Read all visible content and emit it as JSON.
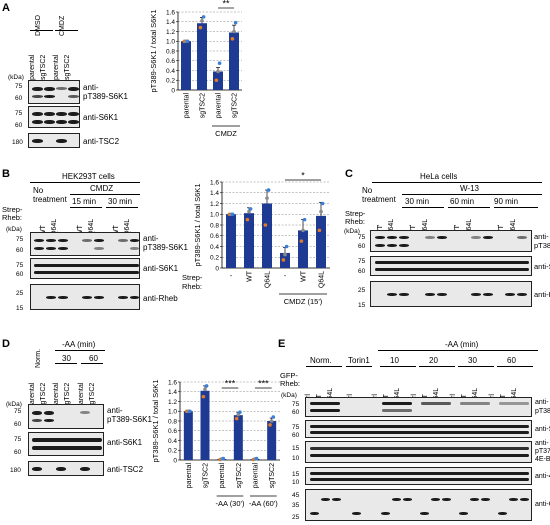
{
  "panels": {
    "A": {
      "letter": "A",
      "treatments": [
        "DMSO",
        "CMDZ"
      ],
      "lanes": [
        "parental",
        "sgTSC2",
        "parental",
        "sgTSC2"
      ],
      "kda": "(kDa)",
      "markers": [
        "75",
        "60",
        "75",
        "60",
        "180"
      ],
      "blots": [
        "anti-\npT389-S6K1",
        "anti-S6K1",
        "anti-TSC2"
      ]
    },
    "B": {
      "letter": "B",
      "cell_line": "HEK293T cells",
      "groups": [
        "No treatment",
        "CMDZ",
        "15 min",
        "30 min"
      ],
      "strep_rheb_label": "Strep-\nRheb:",
      "kda": "(kDa)",
      "lanes": [
        "-",
        "WT",
        "Q64L",
        "-",
        "WT",
        "Q64L",
        "-",
        "WT",
        "Q64L"
      ],
      "markers": [
        "75",
        "60",
        "75",
        "60",
        "25",
        "15"
      ],
      "blots": [
        "anti-\npT389-S6K1",
        "anti-S6K1",
        "anti-Rheb"
      ]
    },
    "C": {
      "letter": "C",
      "cell_line": "HeLa cells",
      "groups": [
        "No treatment",
        "W-13",
        "30 min",
        "60 min",
        "90 min"
      ],
      "strep_rheb_label": "Strep-\nRheb:",
      "kda": "(kDa)",
      "lanes": [
        "-",
        "WT",
        "Q64L",
        "-",
        "WT",
        "Q64L",
        "-",
        "WT",
        "Q64L",
        "-",
        "WT",
        "Q64L"
      ],
      "markers": [
        "75",
        "60",
        "75",
        "60",
        "25",
        "15"
      ],
      "blots": [
        "anti-\npT389-S6K1",
        "anti-S6K1",
        "anti-Rheb"
      ]
    },
    "D": {
      "letter": "D",
      "treatment": "-AA (min)",
      "lanes_header": [
        "Norm.",
        "30",
        "60"
      ],
      "lanes": [
        "parental",
        "sgTSC2",
        "parental",
        "sgTSC2",
        "parental",
        "sgTSC2"
      ],
      "kda": "(kDa)",
      "markers": [
        "75",
        "60",
        "75",
        "60",
        "180"
      ],
      "blots": [
        "anti-\npT389-S6K1",
        "anti-S6K1",
        "anti-TSC2"
      ]
    },
    "E": {
      "letter": "E",
      "treatment": "-AA (min)",
      "groups": [
        "Norm.",
        "Torin1",
        "10",
        "20",
        "30",
        "60"
      ],
      "gfp_rheb_label": "GFP-\nRheb:",
      "kda": "(kDa)",
      "lanes": [
        "Ctrl",
        "WT",
        "Q64L",
        "Ctrl",
        "Ctrl",
        "WT",
        "Q64L",
        "Ctrl",
        "WT",
        "Q64L",
        "Ctrl",
        "WT",
        "Q64L",
        "Ctrl",
        "WT",
        "Q64L"
      ],
      "markers": [
        "75",
        "60",
        "75",
        "60",
        "15",
        "10",
        "15",
        "10",
        "45",
        "35",
        "25"
      ],
      "blots": [
        "anti-\npT389-S6K1",
        "anti-S6K1",
        "anti-\npT37/46-\n4E-BP1",
        "anti-4E-BP1",
        "anti-GFP"
      ]
    }
  },
  "chart_data": [
    {
      "panel": "A",
      "type": "bar",
      "ylabel": "pT389-S6K1 / total S6K1",
      "ylim": [
        0,
        1.6
      ],
      "yticks": [
        "0",
        "0.2",
        "0.4",
        "0.6",
        "0.8",
        "1.0",
        "1.2",
        "1.4",
        "1.6"
      ],
      "categories": [
        "parental",
        "sgTSC2",
        "parental",
        "sgTSC2"
      ],
      "values": [
        1.0,
        1.37,
        0.38,
        1.18
      ],
      "errors": [
        0.0,
        0.12,
        0.08,
        0.15
      ],
      "points": [
        [
          1.0,
          1.0,
          1.0
        ],
        [
          1.28,
          1.42,
          1.5
        ],
        [
          0.2,
          0.38,
          0.55
        ],
        [
          1.05,
          1.2,
          1.38
        ]
      ],
      "group_label": "CMDZ",
      "significance": "**",
      "colors": {
        "bar": "#1f3a93",
        "points": [
          "#e07b27",
          "#8a8a8a",
          "#3b7fd6"
        ]
      }
    },
    {
      "panel": "B",
      "type": "bar",
      "ylabel": "pT389-S6K1 / total S6K1",
      "ylim": [
        0,
        1.6
      ],
      "yticks": [
        "0",
        "0.2",
        "0.4",
        "0.6",
        "0.8",
        "1.0",
        "1.2",
        "1.4",
        "1.6"
      ],
      "x_title": "Strep-\nRheb:",
      "categories": [
        "-",
        "WT",
        "Q64L",
        "-",
        "WT",
        "Q64L"
      ],
      "values": [
        1.0,
        1.02,
        1.2,
        0.28,
        0.7,
        0.97
      ],
      "errors": [
        0.0,
        0.1,
        0.25,
        0.1,
        0.2,
        0.25
      ],
      "points": [
        [
          1.0,
          1.0,
          1.0
        ],
        [
          0.9,
          1.05,
          1.1
        ],
        [
          0.8,
          1.3,
          1.45
        ],
        [
          0.15,
          0.25,
          0.4
        ],
        [
          0.5,
          0.7,
          0.9
        ],
        [
          0.7,
          1.05,
          1.2
        ]
      ],
      "group_label": "CMDZ (15')",
      "significance": "*",
      "colors": {
        "bar": "#1f3a93",
        "points": [
          "#e07b27",
          "#8a8a8a",
          "#3b7fd6"
        ]
      }
    },
    {
      "panel": "D",
      "type": "bar",
      "ylabel": "pT389-S6K1 / total S6K1",
      "ylim": [
        0,
        1.6
      ],
      "yticks": [
        "0",
        "0.2",
        "0.4",
        "0.6",
        "0.8",
        "1.0",
        "1.2",
        "1.4",
        "1.6"
      ],
      "categories": [
        "parental",
        "sgTSC2",
        "parental",
        "sgTSC2",
        "parental",
        "sgTSC2"
      ],
      "values": [
        1.0,
        1.42,
        0.02,
        0.92,
        0.02,
        0.8
      ],
      "errors": [
        0.0,
        0.1,
        0.01,
        0.05,
        0.01,
        0.06
      ],
      "points": [
        [
          1.0,
          1.0,
          1.0
        ],
        [
          1.3,
          1.45,
          1.52
        ],
        [
          0.01,
          0.02,
          0.03
        ],
        [
          0.85,
          0.93,
          0.98
        ],
        [
          0.01,
          0.02,
          0.03
        ],
        [
          0.72,
          0.8,
          0.88
        ]
      ],
      "group_labels": [
        "-AA (30')",
        "-AA (60')"
      ],
      "significance": [
        "***",
        "***"
      ],
      "colors": {
        "bar": "#1f3a93",
        "points": [
          "#e07b27",
          "#8a8a8a",
          "#3b7fd6"
        ]
      }
    }
  ]
}
